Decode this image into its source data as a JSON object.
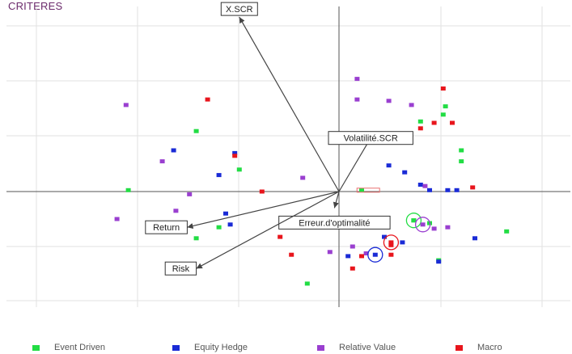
{
  "chart_title": "CRITERES",
  "chart_data": {
    "type": "scatter",
    "title": "CRITERES",
    "xlim": [
      -1,
      1
    ],
    "ylim": [
      -1,
      1
    ],
    "grid": true,
    "legend_placement": "bottom",
    "series": [
      {
        "name": "Event Driven",
        "color": "#22dd44",
        "points": [
          [
            -0.93,
            0.01
          ],
          [
            -0.63,
            0.44
          ],
          [
            -0.63,
            -0.34
          ],
          [
            -0.53,
            -0.26
          ],
          [
            -0.44,
            0.16
          ],
          [
            -0.14,
            -0.67
          ],
          [
            0.1,
            0.01
          ],
          [
            0.36,
            0.51
          ],
          [
            0.33,
            -0.21
          ],
          [
            0.4,
            -0.23
          ],
          [
            0.46,
            0.56
          ],
          [
            0.47,
            0.62
          ],
          [
            0.54,
            0.3
          ],
          [
            0.54,
            0.22
          ],
          [
            0.44,
            -0.5
          ],
          [
            0.74,
            -0.29
          ]
        ]
      },
      {
        "name": "Equity Hedge",
        "color": "#1a2bd6",
        "points": [
          [
            -0.73,
            0.3
          ],
          [
            -0.53,
            0.12
          ],
          [
            -0.46,
            0.28
          ],
          [
            -0.5,
            -0.16
          ],
          [
            -0.48,
            -0.24
          ],
          [
            0.04,
            -0.47
          ],
          [
            0.2,
            -0.33
          ],
          [
            0.28,
            -0.37
          ],
          [
            0.22,
            0.19
          ],
          [
            0.29,
            0.14
          ],
          [
            0.36,
            0.05
          ],
          [
            0.4,
            0.01
          ],
          [
            0.48,
            0.01
          ],
          [
            0.52,
            0.01
          ],
          [
            0.6,
            -0.34
          ],
          [
            0.44,
            -0.51
          ]
        ]
      },
      {
        "name": "Relative Value",
        "color": "#9a3fd0",
        "points": [
          [
            -0.94,
            0.63
          ],
          [
            -0.78,
            0.22
          ],
          [
            -0.72,
            -0.14
          ],
          [
            -0.66,
            -0.02
          ],
          [
            -0.98,
            -0.2
          ],
          [
            -0.16,
            0.1
          ],
          [
            0.08,
            0.82
          ],
          [
            0.08,
            0.67
          ],
          [
            0.12,
            -0.45
          ],
          [
            0.06,
            -0.4
          ],
          [
            0.22,
            0.66
          ],
          [
            0.32,
            0.63
          ],
          [
            0.38,
            0.04
          ],
          [
            0.42,
            -0.27
          ],
          [
            0.48,
            -0.26
          ],
          [
            -0.04,
            -0.44
          ]
        ]
      },
      {
        "name": "Macro",
        "color": "#e8151c",
        "points": [
          [
            -0.58,
            0.67
          ],
          [
            -0.46,
            0.26
          ],
          [
            -0.34,
            0.0
          ],
          [
            -0.26,
            -0.33
          ],
          [
            -0.21,
            -0.46
          ],
          [
            0.06,
            -0.56
          ],
          [
            0.1,
            -0.47
          ],
          [
            0.23,
            -0.39
          ],
          [
            0.23,
            -0.46
          ],
          [
            0.36,
            0.46
          ],
          [
            0.42,
            0.5
          ],
          [
            0.46,
            0.75
          ],
          [
            0.5,
            0.5
          ],
          [
            0.59,
            0.03
          ]
        ]
      }
    ],
    "highlighted_points": [
      {
        "series": "Event Driven",
        "point": [
          0.33,
          -0.21
        ]
      },
      {
        "series": "Relative Value",
        "point": [
          0.37,
          -0.24
        ]
      },
      {
        "series": "Equity Hedge",
        "point": [
          0.16,
          -0.46
        ]
      },
      {
        "series": "Macro",
        "point": [
          0.23,
          -0.37
        ]
      }
    ],
    "vectors": [
      {
        "label": "X.SCR",
        "end": [
          -0.44,
          1.27
        ]
      },
      {
        "label": "Volatilité.SCR",
        "end": [
          0.14,
          0.39
        ]
      },
      {
        "label": "Erreur.d'optimalité",
        "end": [
          -0.02,
          -0.12
        ]
      },
      {
        "label": "Return",
        "end": [
          -0.67,
          -0.26
        ]
      },
      {
        "label": "Risk",
        "end": [
          -0.63,
          -0.56
        ]
      }
    ],
    "small_markers": [
      {
        "point": [
          0.09,
          0.01
        ],
        "color": "#e87070"
      }
    ]
  }
}
